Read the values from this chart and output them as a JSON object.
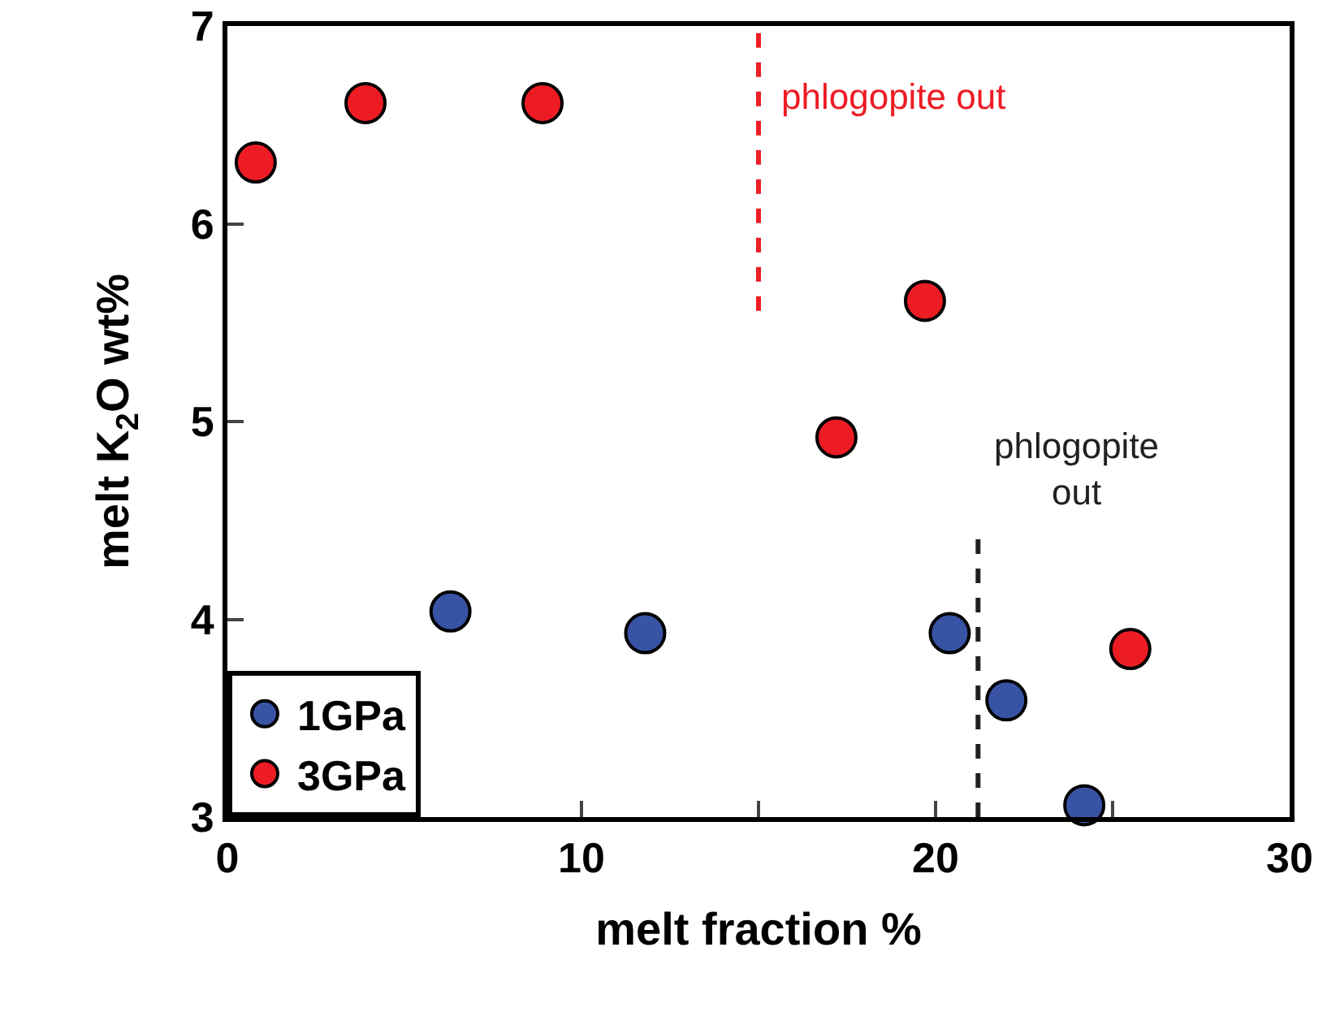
{
  "chart_data": {
    "type": "scatter",
    "xlabel": "melt fraction %",
    "ylabel": "melt K$_{2}$O wt%",
    "xlim": [
      0,
      30
    ],
    "ylim": [
      3,
      7
    ],
    "xticks": [
      0,
      {
        "value": 5,
        "label": null
      },
      10,
      {
        "value": 15,
        "label": null
      },
      20,
      {
        "value": 25,
        "label": null
      },
      30
    ],
    "yticks": [
      3,
      4,
      5,
      6,
      7
    ],
    "series": [
      {
        "name": "1GPa",
        "color": "#3953a4",
        "x": [
          6.3,
          11.8,
          20.4,
          22.0,
          24.2
        ],
        "values": [
          4.04,
          3.93,
          3.93,
          3.59,
          3.06
        ]
      },
      {
        "name": "3GPa",
        "color": "#ed1c24",
        "x": [
          0.8,
          3.9,
          8.9,
          19.7,
          17.2,
          25.5
        ],
        "values": [
          6.31,
          6.61,
          6.61,
          5.61,
          4.92,
          3.85
        ]
      }
    ],
    "ref_lines": [
      {
        "axis": "x",
        "value": 15,
        "label": "phlogopite out",
        "color": "#ed1c24",
        "line_style": "dashed"
      },
      {
        "axis": "x",
        "value": 21.2,
        "label": "phlogopite\nout",
        "color": "#231f20",
        "line_style": "dashed"
      }
    ],
    "marker": "circle",
    "legend": "bottom left",
    "grid": false
  }
}
